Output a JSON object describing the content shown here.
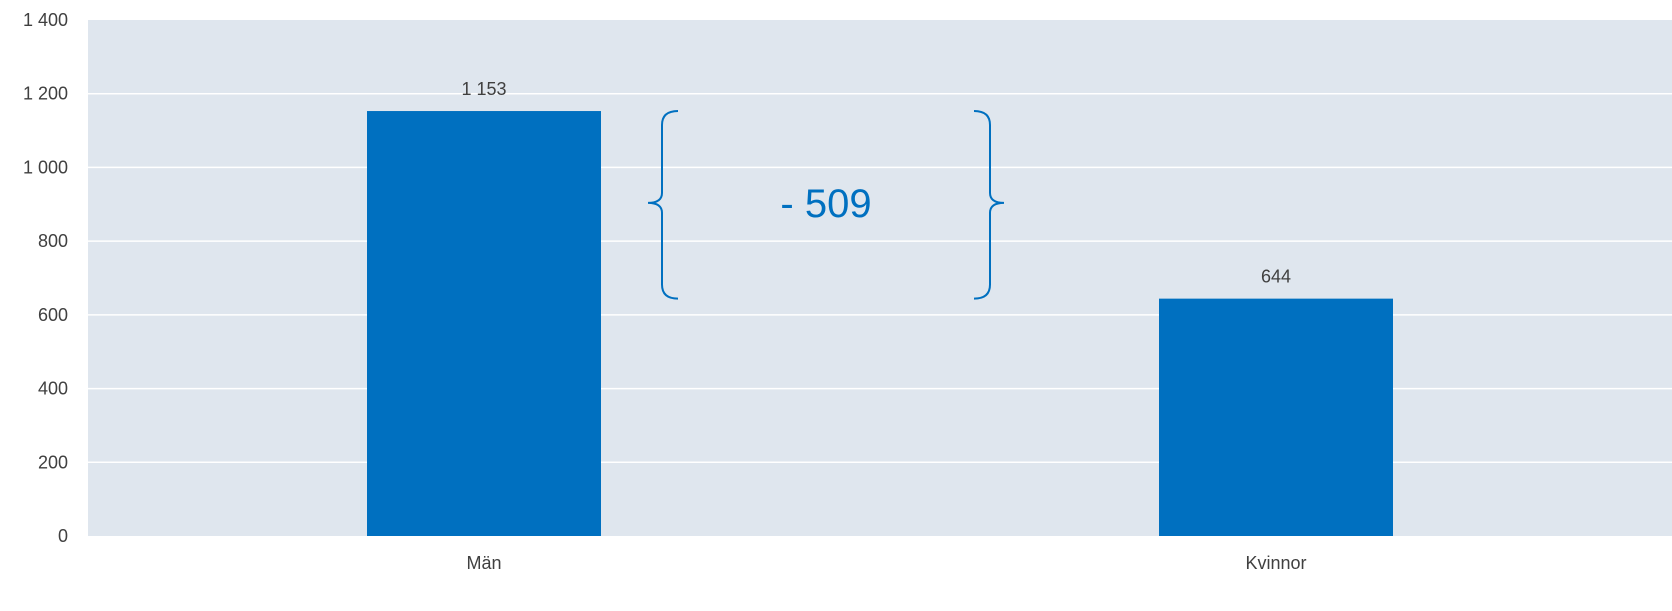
{
  "chart_data": {
    "type": "bar",
    "title": "",
    "xlabel": "",
    "ylabel": "",
    "categories": [
      "Män",
      "Kvinnor"
    ],
    "values": [
      1153,
      644
    ],
    "data_labels": [
      "1 153",
      "644"
    ],
    "ylim": [
      0,
      1400
    ],
    "yticks": [
      0,
      200,
      400,
      600,
      800,
      1000,
      1200,
      1400
    ],
    "ytick_labels": [
      "0",
      "200",
      "400",
      "600",
      "800",
      "1 000",
      "1 200",
      "1 400"
    ],
    "grid": true,
    "legend": "none",
    "annotation": {
      "text": "- 509",
      "from_value": 1153,
      "to_value": 644
    },
    "colors": {
      "bar": "#0070c0",
      "plot_bg": "#dfe6ee",
      "grid": "#ffffff",
      "annotation": "#0070c0"
    }
  }
}
